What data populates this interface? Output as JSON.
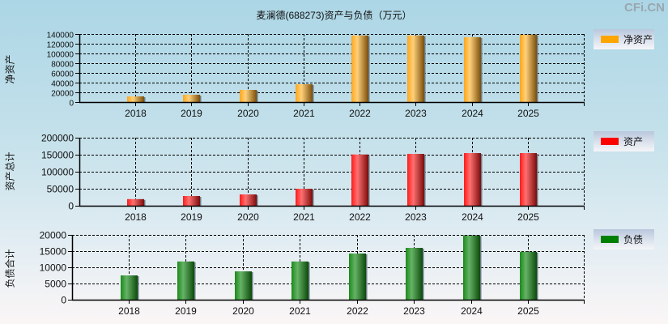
{
  "title": "麦澜德(688273)资产与负债（万元）",
  "watermark": "CFi.CN",
  "chart_data": [
    {
      "type": "bar",
      "title": "麦澜德(688273)资产与负债（万元）",
      "ylabel": "净资产",
      "legend": "净资产",
      "color": "#FFA500",
      "categories": [
        "2018",
        "2019",
        "2020",
        "2021",
        "2022",
        "2023",
        "2024",
        "2025"
      ],
      "values": [
        11700,
        15000,
        25000,
        36700,
        137000,
        137000,
        133500,
        139000
      ],
      "ylim": [
        0,
        140000
      ],
      "yticks": [
        0,
        20000,
        40000,
        60000,
        80000,
        100000,
        120000,
        140000
      ],
      "grid": true,
      "legend_position": "right"
    },
    {
      "type": "bar",
      "ylabel": "资产总计",
      "legend": "资产",
      "color": "#FF0000",
      "categories": [
        "2018",
        "2019",
        "2020",
        "2021",
        "2022",
        "2023",
        "2024",
        "2025"
      ],
      "values": [
        19500,
        28600,
        33300,
        50000,
        150700,
        152400,
        154800,
        154800
      ],
      "ylim": [
        0,
        200000
      ],
      "yticks": [
        0,
        50000,
        100000,
        150000,
        200000
      ],
      "grid": true,
      "legend_position": "right"
    },
    {
      "type": "bar",
      "ylabel": "负债合计",
      "legend": "负债",
      "color": "#008000",
      "categories": [
        "2018",
        "2019",
        "2020",
        "2021",
        "2022",
        "2023",
        "2024",
        "2025"
      ],
      "values": [
        7500,
        11800,
        8750,
        11800,
        14250,
        16000,
        19900,
        14800
      ],
      "ylim": [
        0,
        20000
      ],
      "yticks": [
        0,
        5000,
        10000,
        15000,
        20000
      ],
      "grid": true,
      "legend_position": "right"
    }
  ]
}
